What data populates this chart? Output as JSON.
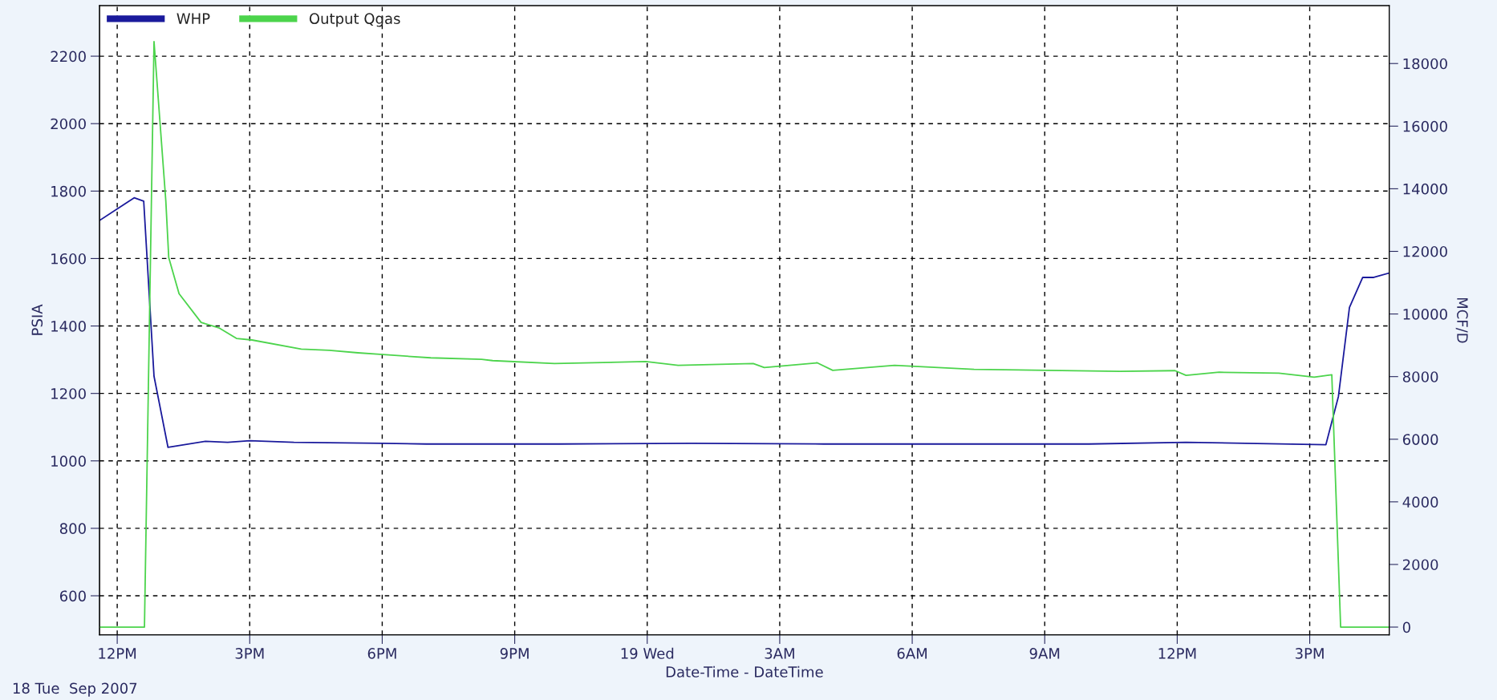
{
  "chart_data": {
    "type": "line",
    "xlabel": "Date-Time - DateTime",
    "ylabel": "PSIA",
    "y2label": "MCF/D",
    "annotations": [
      "18 Tue  Sep 2007"
    ],
    "xlim": [
      "2007-09-18T11:36",
      "2007-09-19T16:48"
    ],
    "xticks": [
      {
        "value": "2007-09-18T12:00",
        "label": "12PM"
      },
      {
        "value": "2007-09-18T15:00",
        "label": "3PM"
      },
      {
        "value": "2007-09-18T18:00",
        "label": "6PM"
      },
      {
        "value": "2007-09-18T21:00",
        "label": "9PM"
      },
      {
        "value": "2007-09-19T00:00",
        "label": "19 Wed"
      },
      {
        "value": "2007-09-19T03:00",
        "label": "3AM"
      },
      {
        "value": "2007-09-19T06:00",
        "label": "6AM"
      },
      {
        "value": "2007-09-19T09:00",
        "label": "9AM"
      },
      {
        "value": "2007-09-19T12:00",
        "label": "12PM"
      },
      {
        "value": "2007-09-19T15:00",
        "label": "3PM"
      }
    ],
    "ylim": [
      484,
      2350
    ],
    "yticks": [
      600,
      800,
      1000,
      1200,
      1400,
      1600,
      1800,
      2000,
      2200
    ],
    "y2lim": [
      -250,
      19850
    ],
    "y2ticks": [
      0,
      2000,
      4000,
      6000,
      8000,
      10000,
      12000,
      14000,
      16000,
      18000
    ],
    "grid": true,
    "legend": "top left",
    "series": [
      {
        "name": "WHP",
        "color": "#1a1a9c",
        "x": [
          "2007-09-18T11:36",
          "2007-09-18T12:23",
          "2007-09-18T12:36",
          "2007-09-18T12:50",
          "2007-09-18T13:09",
          "2007-09-18T14:00",
          "2007-09-18T14:30",
          "2007-09-18T15:00",
          "2007-09-18T16:00",
          "2007-09-18T18:00",
          "2007-09-18T19:00",
          "2007-09-18T22:00",
          "2007-09-19T01:00",
          "2007-09-19T04:00",
          "2007-09-19T07:00",
          "2007-09-19T10:00",
          "2007-09-19T12:12",
          "2007-09-19T15:22",
          "2007-09-19T15:39",
          "2007-09-19T15:54",
          "2007-09-19T16:12",
          "2007-09-19T16:27",
          "2007-09-19T16:48"
        ],
        "values": [
          1713,
          1780,
          1770,
          1251,
          1040,
          1058,
          1055,
          1060,
          1055,
          1052,
          1050,
          1050,
          1052,
          1050,
          1050,
          1050,
          1055,
          1048,
          1191,
          1455,
          1544,
          1544,
          1557
        ]
      },
      {
        "name": "Output Qgas",
        "color": "#4cd44c",
        "axis": "y2",
        "x": [
          "2007-09-18T11:36",
          "2007-09-18T12:37",
          "2007-09-18T12:50",
          "2007-09-18T13:06",
          "2007-09-18T13:10",
          "2007-09-18T13:24",
          "2007-09-18T13:54",
          "2007-09-18T14:18",
          "2007-09-18T14:42",
          "2007-09-18T15:03",
          "2007-09-18T16:10",
          "2007-09-18T16:48",
          "2007-09-18T17:27",
          "2007-09-18T17:57",
          "2007-09-18T19:06",
          "2007-09-18T20:15",
          "2007-09-18T20:30",
          "2007-09-18T21:54",
          "2007-09-18T23:58",
          "2007-09-19T00:42",
          "2007-09-19T02:24",
          "2007-09-19T02:39",
          "2007-09-19T03:51",
          "2007-09-19T04:12",
          "2007-09-19T05:36",
          "2007-09-19T07:24",
          "2007-09-19T09:03",
          "2007-09-19T10:42",
          "2007-09-19T11:57",
          "2007-09-19T12:12",
          "2007-09-19T12:57",
          "2007-09-19T14:18",
          "2007-09-19T15:06",
          "2007-09-19T15:30",
          "2007-09-19T15:42",
          "2007-09-19T16:48"
        ],
        "values": [
          0,
          0,
          18700,
          13620,
          11800,
          10650,
          9730,
          9560,
          9220,
          9170,
          8880,
          8840,
          8760,
          8710,
          8600,
          8550,
          8510,
          8420,
          8480,
          8360,
          8420,
          8290,
          8440,
          8200,
          8360,
          8230,
          8200,
          8170,
          8190,
          8040,
          8140,
          8110,
          7980,
          8060,
          0,
          0
        ]
      }
    ]
  }
}
